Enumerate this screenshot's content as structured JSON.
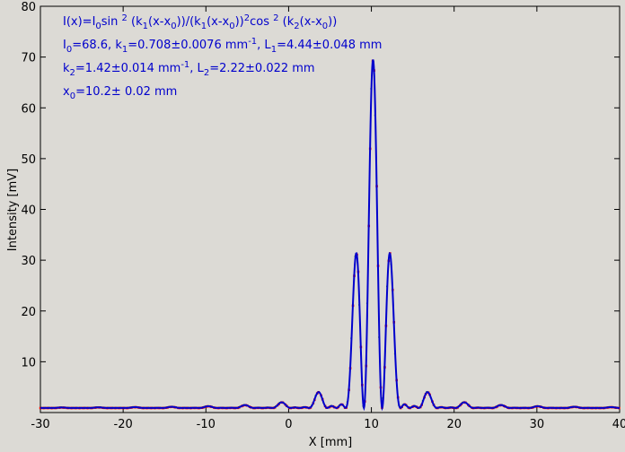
{
  "chart_data": {
    "type": "scatter",
    "title": "",
    "xlabel": "X [mm]",
    "ylabel": "Intensity [mV]",
    "xlim": [
      -30,
      40
    ],
    "ylim": [
      0,
      80
    ],
    "xticks": [
      -30,
      -20,
      -10,
      0,
      10,
      20,
      30,
      40
    ],
    "yticks": [
      10,
      20,
      30,
      40,
      50,
      60,
      70,
      80
    ],
    "grid": false,
    "legend": "none",
    "colors": {
      "fit": "#0000cc",
      "data": "#ee0000",
      "data_secondary": "#228822",
      "formula": "#0000cc"
    },
    "annotations": {
      "formula": [
        "I(x)=I",
        "0",
        "sin ",
        "2",
        " (k",
        "1",
        "(x-x",
        "0",
        "))/(k",
        "1",
        "(x-x",
        "0",
        "))",
        "2",
        "cos ",
        "2",
        " (k",
        "2",
        "(x-x",
        "0",
        "))"
      ],
      "line1": [
        "I",
        "0",
        "=68.6,  k",
        "1",
        "=0.708±0.0076 mm",
        "-1",
        ",   L",
        "1",
        "=4.44±0.048 mm"
      ],
      "line2": [
        "k",
        "2",
        "=1.42±0.014 mm",
        "-1",
        ",   L",
        "2",
        "=2.22±0.022 mm"
      ],
      "line3": [
        "x",
        "0",
        "=10.2±   0.02 mm"
      ]
    },
    "fit_params": {
      "I0": 68.6,
      "k1": 0.708,
      "k2": 1.42,
      "x0": 10.2,
      "offset": 0.9
    },
    "series": [
      {
        "kind": "fit-line",
        "x_range": [
          -30,
          40
        ],
        "step": 0.05
      },
      {
        "kind": "data-points",
        "x_range": [
          -30,
          40
        ],
        "step": 0.16
      }
    ]
  }
}
